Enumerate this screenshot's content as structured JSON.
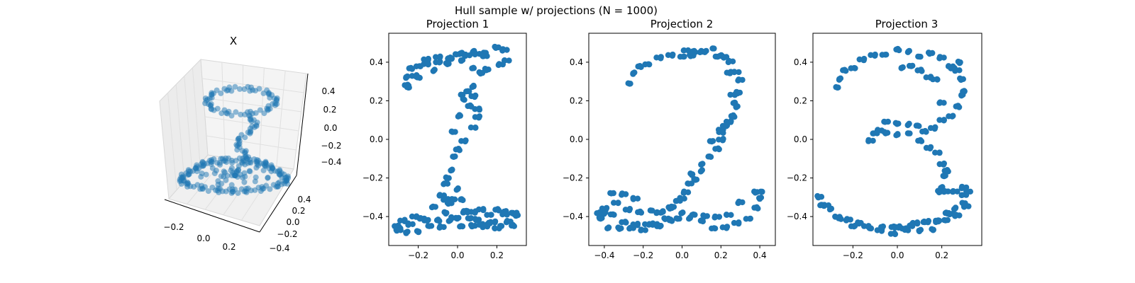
{
  "figure_title": "Hull sample w/ projections (N = 1000)",
  "colors": {
    "points": "#1f77b4",
    "axes": "#000000",
    "pane": "#f2f2f2",
    "grid": "#e0e0e0"
  },
  "chart_data": [
    {
      "type": "scatter",
      "projection": "3d",
      "title": "X",
      "xticks": [
        "−0.2",
        "0.0",
        "0.2"
      ],
      "yticks": [
        "−0.4",
        "−0.2",
        "0.0",
        "0.2",
        "0.4"
      ],
      "zticks": [
        "−0.4",
        "−0.2",
        "0.0",
        "0.2",
        "0.4"
      ],
      "point_alpha": 0.5
    },
    {
      "type": "scatter",
      "title": "Projection 1",
      "xlim": [
        -0.35,
        0.35
      ],
      "ylim": [
        -0.55,
        0.55
      ],
      "xticks": [
        -0.2,
        0.0,
        0.2
      ],
      "yticks": [
        -0.4,
        -0.2,
        0.0,
        0.2,
        0.4
      ],
      "xtick_labels": [
        "−0.2",
        "0.0",
        "0.2"
      ],
      "ytick_labels": [
        "−0.4",
        "−0.2",
        "0.0",
        "0.2",
        "0.4"
      ],
      "x": [
        -0.25,
        -0.26,
        -0.24,
        -0.2,
        -0.16,
        -0.1,
        -0.04,
        0.02,
        0.08,
        0.14,
        0.2,
        0.24,
        0.25,
        0.22,
        0.15,
        0.08,
        0.02,
        -0.04,
        -0.1,
        -0.16,
        -0.22,
        -0.26,
        -0.2,
        -0.12,
        -0.05,
        0.0,
        0.05,
        0.1,
        0.14,
        0.12,
        0.08,
        0.02,
        0.06,
        0.1,
        0.08,
        0.03,
        0.0,
        -0.02,
        -0.03,
        -0.05,
        -0.06,
        -0.08,
        -0.06,
        -0.04,
        -0.02,
        0.0,
        0.02,
        0.04,
        0.08,
        0.12,
        0.16,
        0.2,
        0.24,
        0.28,
        0.3,
        0.26,
        0.2,
        0.14,
        0.08,
        0.02,
        -0.04,
        -0.1,
        -0.16,
        -0.22,
        -0.28,
        -0.31,
        -0.3,
        -0.26,
        -0.2,
        -0.14,
        -0.08,
        -0.02,
        0.04,
        0.1,
        0.16,
        0.22,
        0.28,
        0.29,
        0.24,
        0.18,
        0.12,
        0.06,
        0.0,
        -0.06,
        -0.12,
        -0.18,
        -0.24,
        -0.3,
        -0.02,
        0.01,
        0.03,
        0.05,
        0.08,
        0.1
      ],
      "y": [
        0.28,
        0.32,
        0.36,
        0.39,
        0.41,
        0.42,
        0.43,
        0.44,
        0.45,
        0.46,
        0.47,
        0.46,
        0.42,
        0.38,
        0.36,
        0.38,
        0.4,
        0.42,
        0.41,
        0.38,
        0.33,
        0.29,
        0.31,
        0.36,
        0.4,
        0.43,
        0.44,
        0.45,
        0.42,
        0.35,
        0.28,
        0.22,
        0.18,
        0.12,
        0.05,
        0.0,
        -0.05,
        -0.1,
        -0.15,
        -0.2,
        -0.24,
        -0.28,
        -0.31,
        -0.34,
        -0.3,
        -0.26,
        -0.32,
        -0.36,
        -0.38,
        -0.37,
        -0.38,
        -0.37,
        -0.38,
        -0.37,
        -0.4,
        -0.43,
        -0.45,
        -0.46,
        -0.45,
        -0.44,
        -0.43,
        -0.42,
        -0.41,
        -0.41,
        -0.42,
        -0.44,
        -0.47,
        -0.48,
        -0.47,
        -0.46,
        -0.45,
        -0.4,
        -0.39,
        -0.41,
        -0.43,
        -0.46,
        -0.44,
        -0.38,
        -0.4,
        -0.42,
        -0.44,
        -0.42,
        -0.4,
        -0.38,
        -0.36,
        -0.4,
        -0.44,
        -0.48,
        0.05,
        0.12,
        0.2,
        0.26,
        0.22,
        0.15
      ]
    },
    {
      "type": "scatter",
      "title": "Projection 2",
      "xlim": [
        -0.48,
        0.48
      ],
      "ylim": [
        -0.55,
        0.55
      ],
      "xticks": [
        -0.4,
        -0.2,
        0.0,
        0.2,
        0.4
      ],
      "yticks": [
        -0.4,
        -0.2,
        0.0,
        0.2,
        0.4
      ],
      "xtick_labels": [
        "−0.4",
        "−0.2",
        "0.0",
        "0.2",
        "0.4"
      ],
      "ytick_labels": [
        "−0.4",
        "−0.2",
        "0.0",
        "0.2",
        "0.4"
      ],
      "x": [
        -0.27,
        -0.25,
        -0.22,
        -0.18,
        -0.12,
        -0.06,
        0.0,
        0.06,
        0.12,
        0.18,
        0.22,
        0.25,
        0.28,
        0.3,
        0.29,
        0.27,
        0.28,
        0.26,
        0.22,
        0.2,
        0.2,
        0.18,
        0.14,
        0.1,
        0.07,
        0.04,
        0.02,
        0.0,
        -0.02,
        -0.06,
        -0.1,
        -0.16,
        -0.22,
        -0.28,
        -0.34,
        -0.4,
        -0.43,
        -0.42,
        -0.38,
        -0.32,
        -0.26,
        -0.2,
        -0.14,
        -0.08,
        -0.02,
        0.04,
        0.1,
        0.16,
        0.22,
        0.28,
        0.34,
        0.38,
        0.4,
        0.41,
        0.38,
        0.3,
        0.24,
        0.18,
        0.12,
        0.06,
        0.0,
        -0.06,
        -0.12,
        -0.18,
        -0.24,
        -0.3,
        -0.36,
        -0.4,
        -0.42,
        -0.36,
        -0.3,
        -0.24,
        0.02,
        0.05,
        0.1,
        0.16,
        0.2,
        0.24,
        0.26,
        0.24,
        0.2,
        0.15,
        0.1,
        0.05,
        -0.05,
        -0.12
      ],
      "y": [
        0.3,
        0.34,
        0.37,
        0.4,
        0.42,
        0.43,
        0.44,
        0.45,
        0.45,
        0.44,
        0.42,
        0.4,
        0.36,
        0.3,
        0.24,
        0.2,
        0.16,
        0.12,
        0.08,
        0.04,
        0.0,
        -0.04,
        -0.1,
        -0.16,
        -0.2,
        -0.24,
        -0.27,
        -0.3,
        -0.33,
        -0.35,
        -0.37,
        -0.38,
        -0.37,
        -0.36,
        -0.34,
        -0.35,
        -0.38,
        -0.42,
        -0.45,
        -0.46,
        -0.47,
        -0.46,
        -0.44,
        -0.42,
        -0.4,
        -0.41,
        -0.43,
        -0.45,
        -0.46,
        -0.44,
        -0.4,
        -0.36,
        -0.31,
        -0.26,
        -0.28,
        -0.33,
        -0.38,
        -0.41,
        -0.4,
        -0.38,
        -0.39,
        -0.42,
        -0.44,
        -0.45,
        -0.44,
        -0.42,
        -0.4,
        -0.38,
        -0.4,
        -0.29,
        -0.28,
        -0.3,
        0.45,
        0.44,
        0.46,
        0.46,
        0.44,
        0.35,
        0.22,
        0.1,
        0.04,
        -0.02,
        -0.12,
        -0.18,
        -0.36,
        -0.37
      ]
    },
    {
      "type": "scatter",
      "title": "Projection 3",
      "xlim": [
        -0.38,
        0.38
      ],
      "ylim": [
        -0.55,
        0.55
      ],
      "xticks": [
        -0.2,
        0.0,
        0.2
      ],
      "yticks": [
        -0.4,
        -0.2,
        0.0,
        0.2,
        0.4
      ],
      "xtick_labels": [
        "−0.2",
        "0.0",
        "0.2"
      ],
      "ytick_labels": [
        "−0.4",
        "−0.2",
        "0.0",
        "0.2",
        "0.4"
      ],
      "x": [
        -0.27,
        -0.26,
        -0.24,
        -0.2,
        -0.16,
        -0.11,
        -0.06,
        0.0,
        0.05,
        0.1,
        0.15,
        0.2,
        0.24,
        0.27,
        0.29,
        0.3,
        0.29,
        0.27,
        0.24,
        0.2,
        0.16,
        0.12,
        0.09,
        0.05,
        0.0,
        -0.05,
        -0.08,
        -0.12,
        -0.1,
        -0.05,
        0.0,
        0.05,
        0.1,
        0.14,
        0.18,
        0.2,
        0.22,
        0.21,
        0.2,
        0.19,
        0.22,
        0.26,
        0.3,
        0.32,
        0.3,
        0.26,
        0.22,
        0.18,
        0.13,
        0.08,
        0.03,
        -0.02,
        -0.07,
        -0.12,
        -0.17,
        -0.22,
        -0.27,
        -0.32,
        -0.35,
        -0.34,
        -0.3,
        -0.26,
        -0.2,
        -0.14,
        -0.08,
        -0.02,
        0.04,
        0.1,
        0.16,
        0.22,
        0.27,
        0.31,
        0.3,
        0.24,
        0.18,
        0.12,
        0.06,
        0.0,
        0.17,
        0.14,
        0.1,
        0.06,
        0.02,
        0.28,
        0.25,
        0.2
      ],
      "y": [
        0.28,
        0.31,
        0.35,
        0.38,
        0.41,
        0.43,
        0.45,
        0.46,
        0.45,
        0.44,
        0.44,
        0.42,
        0.39,
        0.35,
        0.31,
        0.26,
        0.22,
        0.17,
        0.13,
        0.09,
        0.06,
        0.05,
        0.06,
        0.08,
        0.09,
        0.08,
        0.05,
        0.0,
        0.02,
        0.04,
        0.03,
        0.02,
        0.0,
        -0.04,
        -0.08,
        -0.12,
        -0.16,
        -0.2,
        -0.24,
        -0.27,
        -0.28,
        -0.26,
        -0.25,
        -0.28,
        -0.32,
        -0.36,
        -0.39,
        -0.41,
        -0.43,
        -0.44,
        -0.45,
        -0.46,
        -0.46,
        -0.45,
        -0.44,
        -0.42,
        -0.39,
        -0.35,
        -0.3,
        -0.33,
        -0.37,
        -0.41,
        -0.44,
        -0.46,
        -0.47,
        -0.48,
        -0.48,
        -0.47,
        -0.46,
        -0.43,
        -0.39,
        -0.34,
        -0.3,
        -0.38,
        -0.42,
        -0.44,
        -0.44,
        -0.45,
        0.3,
        0.33,
        0.36,
        0.37,
        0.38,
        0.4,
        0.36,
        0.2
      ]
    }
  ]
}
